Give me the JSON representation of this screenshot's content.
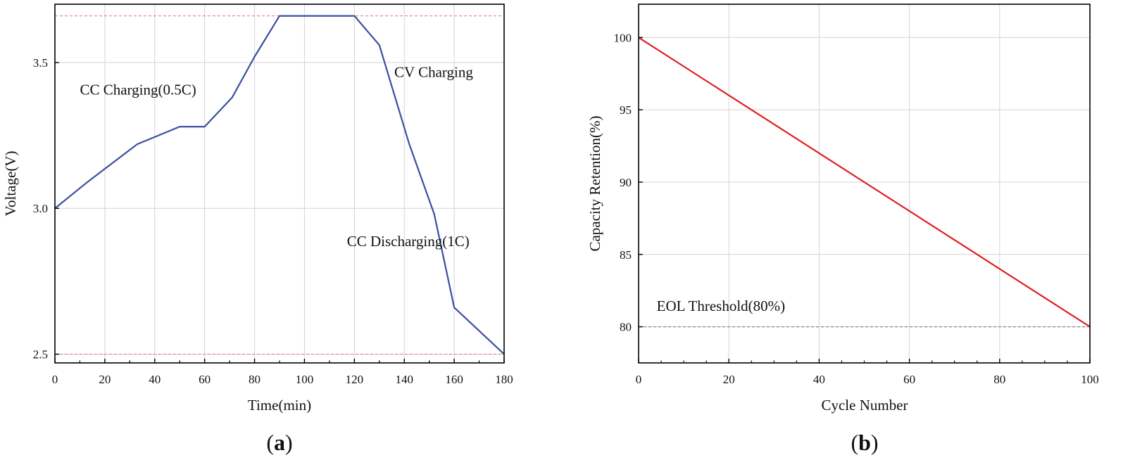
{
  "chart_data": [
    {
      "type": "line",
      "panel_label": "(a)",
      "panel_letter": "a",
      "xlabel": "Time(min)",
      "ylabel": "Voltage(V)",
      "xlim": [
        0,
        180
      ],
      "ylim": [
        2.47,
        3.7
      ],
      "x_ticks": [
        0,
        20,
        40,
        60,
        80,
        100,
        120,
        140,
        160,
        180
      ],
      "x_tick_labels": [
        "0",
        "20",
        "40",
        "60",
        "80",
        "100",
        "120",
        "140",
        "160",
        "180"
      ],
      "y_ticks": [
        2.5,
        3.0,
        3.5
      ],
      "y_tick_labels": [
        "2.5",
        "3.0",
        "3.5"
      ],
      "grid": true,
      "series": [
        {
          "color": "#3a4fa0",
          "x": [
            0,
            13,
            33,
            50,
            60,
            71,
            80,
            90,
            100,
            120,
            130,
            142,
            152,
            160,
            180
          ],
          "y": [
            3.0,
            3.09,
            3.22,
            3.28,
            3.28,
            3.38,
            3.52,
            3.66,
            3.66,
            3.66,
            3.56,
            3.22,
            2.98,
            2.66,
            2.5
          ]
        }
      ],
      "reference_lines": [
        {
          "y": 3.66,
          "color": "#e88080",
          "style": "dashed"
        },
        {
          "y": 2.5,
          "color": "#e88080",
          "style": "dashed"
        }
      ],
      "annotations": [
        {
          "text": "CC Charging(0.5C)",
          "x": 10,
          "y": 3.39
        },
        {
          "text": "CV Charging",
          "x": 136,
          "y": 3.45
        },
        {
          "text": "CC Discharging(1C)",
          "x": 117,
          "y": 2.87
        }
      ]
    },
    {
      "type": "line",
      "panel_label": "(b)",
      "panel_letter": "b",
      "xlabel": "Cycle Number",
      "ylabel": "Capacity Retention(%)",
      "xlim": [
        0,
        100
      ],
      "ylim": [
        77.5,
        102.3
      ],
      "x_ticks": [
        0,
        20,
        40,
        60,
        80,
        100
      ],
      "x_tick_labels": [
        "0",
        "20",
        "40",
        "60",
        "80",
        "100"
      ],
      "y_ticks": [
        80,
        85,
        90,
        95,
        100
      ],
      "y_tick_labels": [
        "80",
        "85",
        "90",
        "95",
        "100"
      ],
      "grid": true,
      "series": [
        {
          "color": "#e02020",
          "x": [
            0,
            100
          ],
          "y": [
            100,
            80
          ]
        }
      ],
      "reference_lines": [
        {
          "y": 80,
          "color": "#888888",
          "style": "dashed"
        }
      ],
      "annotations": [
        {
          "text": "EOL Threshold(80%)",
          "x": 4,
          "y": 81.1
        }
      ]
    }
  ]
}
